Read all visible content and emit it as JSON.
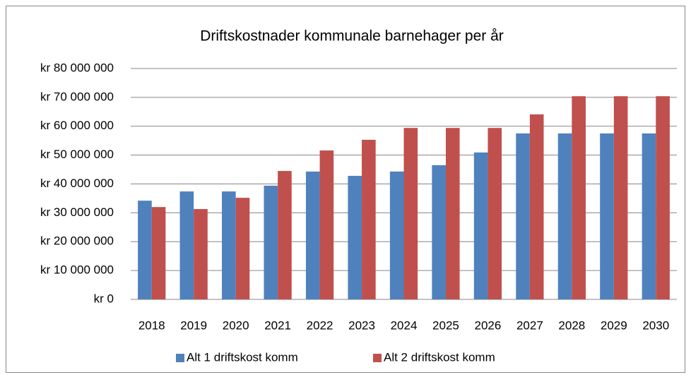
{
  "chart_data": {
    "type": "bar",
    "title": "Driftskostnader kommunale barnehager per år",
    "categories": [
      "2018",
      "2019",
      "2020",
      "2021",
      "2022",
      "2023",
      "2024",
      "2025",
      "2026",
      "2027",
      "2028",
      "2029",
      "2030"
    ],
    "series": [
      {
        "name": "Alt 1 driftskost komm",
        "color": "#4f81bd",
        "values": [
          34200000,
          37400000,
          37400000,
          39400000,
          44300000,
          42800000,
          44300000,
          46500000,
          50900000,
          57500000,
          57500000,
          57500000,
          57500000
        ]
      },
      {
        "name": "Alt 2 driftskost komm",
        "color": "#c0504d",
        "values": [
          32000000,
          31300000,
          35200000,
          44500000,
          51600000,
          55300000,
          59400000,
          59400000,
          59400000,
          64100000,
          70400000,
          70400000,
          70400000
        ]
      }
    ],
    "ylim": [
      0,
      80000000
    ],
    "yticks": [
      {
        "value": 0,
        "label": "kr 0"
      },
      {
        "value": 10000000,
        "label": "kr 10 000 000"
      },
      {
        "value": 20000000,
        "label": "kr 20 000 000"
      },
      {
        "value": 30000000,
        "label": "kr 30 000 000"
      },
      {
        "value": 40000000,
        "label": "kr 40 000 000"
      },
      {
        "value": 50000000,
        "label": "kr 50 000 000"
      },
      {
        "value": 60000000,
        "label": "kr 60 000 000"
      },
      {
        "value": 70000000,
        "label": "kr 70 000 000"
      },
      {
        "value": 80000000,
        "label": "kr 80 000 000"
      }
    ],
    "grid": true,
    "legend": "bottom"
  }
}
